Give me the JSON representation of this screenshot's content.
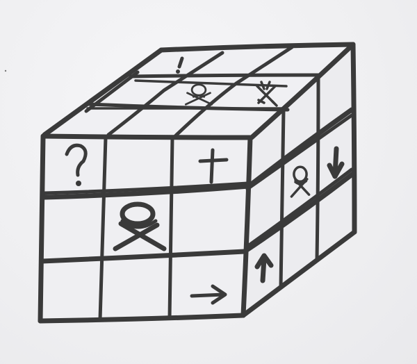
{
  "image": {
    "subject": "hand-drawn-3x3-cube",
    "medium": "pencil",
    "stroke_color": "#3a3a3a",
    "paper_color": "#f1f1f3"
  },
  "symbols": {
    "top_face": [
      {
        "cell": "back-middle",
        "icon": "exclamation-icon",
        "text": "!"
      },
      {
        "cell": "middle-middle",
        "icon": "skull-crossbones-icon",
        "text": ""
      },
      {
        "cell": "middle-right",
        "icon": "crossed-arrows-icon",
        "text": ""
      }
    ],
    "front_face": [
      {
        "cell": "row1-col1",
        "icon": "question-icon",
        "text": "?"
      },
      {
        "cell": "row1-col3",
        "icon": "cross-icon",
        "text": ""
      },
      {
        "cell": "row2-col2",
        "icon": "skull-crossbones-icon",
        "text": ""
      },
      {
        "cell": "row3-col3",
        "icon": "arrow-right-icon",
        "text": ""
      }
    ],
    "side_face": [
      {
        "cell": "row1-col1",
        "icon": "skull-crossbones-icon",
        "text": ""
      },
      {
        "cell": "row1-col2",
        "icon": "arrow-down-icon",
        "text": ""
      },
      {
        "cell": "row3-col1",
        "icon": "arrow-up-icon",
        "text": ""
      }
    ]
  }
}
